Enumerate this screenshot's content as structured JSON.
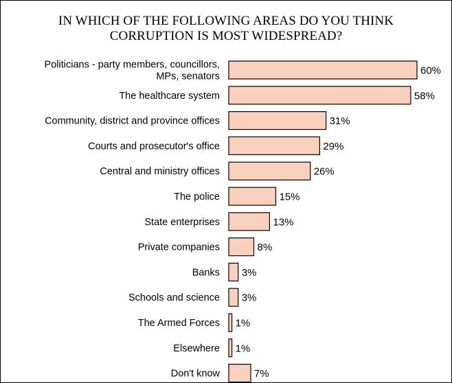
{
  "chart_data": {
    "type": "bar",
    "orientation": "horizontal",
    "title": "IN WHICH OF THE FOLLOWING AREAS DO YOU THINK\nCORRUPTION IS MOST WIDESPREAD?",
    "categories": [
      "Politicians - party members, councillors,\nMPs, senators",
      "The healthcare system",
      "Community,  district and province offices",
      "Courts and prosecutor's office",
      "Central and ministry offices",
      "The police",
      "State enterprises",
      "Private companies",
      "Banks",
      "Schools and science",
      "The Armed Forces",
      "Elsewhere",
      "Don't know"
    ],
    "values": [
      60,
      58,
      31,
      29,
      26,
      15,
      13,
      8,
      3,
      3,
      1,
      1,
      7
    ],
    "value_labels": [
      "60%",
      "58%",
      "31%",
      "29%",
      "26%",
      "15%",
      "13%",
      "8%",
      "3%",
      "3%",
      "1%",
      "1%",
      "7%"
    ],
    "xlim": [
      0,
      60
    ],
    "grid": false,
    "bar_color": "#f9cfbd",
    "bar_edge_color": "#000000"
  }
}
